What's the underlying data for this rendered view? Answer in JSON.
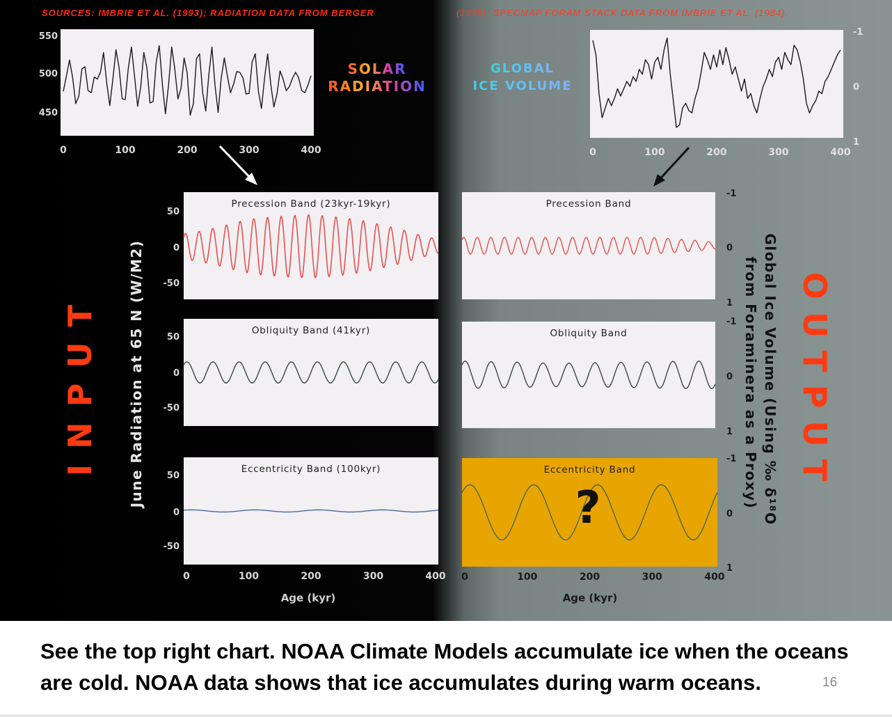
{
  "sources": {
    "part1": "SOURCES: IMBRIE ET AL. (1993); RADIATION DATA FROM BERGER",
    "part2": "(1978); SPECMAP FORAM STACK DATA FROM IMBRIE ET AL. (1984)."
  },
  "headings": {
    "solar_line1": "SOLAR",
    "solar_line2": "RADIATION",
    "ice_line1": "GLOBAL",
    "ice_line2": "ICE VOLUME"
  },
  "side_labels": {
    "input": "INPUT",
    "output": "OUTPUT",
    "left_axis": "June Radiation at 65 N (W/M2)",
    "right_axis_line1": "Global Ice Volume (Using ‰ δ¹⁸O",
    "right_axis_line2": "from Foraminera as a Proxy)"
  },
  "question_mark": "?",
  "caption": {
    "line1": "See the top right chart. NOAA Climate Models accumulate ice when the oceans",
    "line2": "are cold. NOAA data shows that ice accumulates during warm oceans."
  },
  "slide_number": "16",
  "colors": {
    "left_background": "#000000",
    "right_background": "#7d8885",
    "accent_red": "#ff3a12",
    "panel_fill": "#f2f0f2",
    "eccentricity_output_fill": "#e8a400",
    "precession_line": "#e85050",
    "obliquity_line": "#3a4a40",
    "eccentricity_input_line": "#4a6aa0",
    "eccentricity_output_line": "#4a6a50"
  },
  "chart_data": [
    {
      "id": "solar_radiation",
      "type": "line",
      "title": "SOLAR RADIATION",
      "x_ticks": [
        "0",
        "100",
        "200",
        "300",
        "400"
      ],
      "y_ticks": [
        "550",
        "500",
        "450"
      ],
      "xlim": [
        0,
        400
      ],
      "ylim": [
        420,
        560
      ],
      "x": [
        0,
        5,
        10,
        15,
        20,
        25,
        30,
        35,
        40,
        45,
        50,
        55,
        60,
        65,
        70,
        75,
        80,
        85,
        90,
        95,
        100,
        105,
        110,
        115,
        120,
        125,
        130,
        135,
        140,
        145,
        150,
        155,
        160,
        165,
        170,
        175,
        180,
        185,
        190,
        195,
        200,
        205,
        210,
        215,
        220,
        225,
        230,
        235,
        240,
        245,
        250,
        255,
        260,
        265,
        270,
        275,
        280,
        285,
        290,
        295,
        300,
        305,
        310,
        315,
        320,
        325,
        330,
        335,
        340,
        345,
        350,
        355,
        360,
        365,
        370,
        375,
        380,
        385,
        390,
        395,
        400
      ],
      "y": [
        477,
        500,
        523,
        498,
        459,
        470,
        510,
        513,
        478,
        475,
        498,
        495,
        505,
        534,
        490,
        456,
        495,
        538,
        512,
        466,
        465,
        511,
        542,
        500,
        455,
        484,
        534,
        511,
        460,
        462,
        520,
        544,
        487,
        444,
        487,
        542,
        510,
        466,
        481,
        526,
        504,
        442,
        459,
        525,
        532,
        475,
        448,
        501,
        542,
        485,
        446,
        496,
        526,
        499,
        475,
        488,
        506,
        505,
        497,
        473,
        474,
        520,
        532,
        477,
        452,
        497,
        532,
        488,
        454,
        473,
        507,
        495,
        478,
        484,
        496,
        505,
        497,
        478,
        475,
        486,
        500
      ]
    },
    {
      "id": "global_ice_volume",
      "type": "line",
      "title": "GLOBAL ICE VOLUME",
      "x_ticks": [
        "0",
        "100",
        "200",
        "300",
        "400"
      ],
      "y_ticks": [
        "-1",
        "0",
        "1"
      ],
      "xlim": [
        0,
        400
      ],
      "ylim": [
        1,
        -1
      ],
      "x": [
        0,
        5,
        10,
        15,
        20,
        25,
        30,
        35,
        40,
        45,
        50,
        55,
        60,
        65,
        70,
        75,
        80,
        85,
        90,
        95,
        100,
        105,
        110,
        115,
        120,
        125,
        130,
        135,
        140,
        145,
        150,
        155,
        160,
        165,
        170,
        175,
        180,
        185,
        190,
        195,
        200,
        205,
        210,
        215,
        220,
        225,
        230,
        235,
        240,
        245,
        250,
        255,
        260,
        265,
        270,
        275,
        280,
        285,
        290,
        295,
        300,
        305,
        310,
        315,
        320,
        325,
        330,
        335,
        340,
        345,
        350,
        355,
        360,
        365,
        370,
        375,
        380,
        385,
        390,
        395,
        400
      ],
      "y": [
        -0.9,
        -0.6,
        0.2,
        0.7,
        0.5,
        0.3,
        0.45,
        0.3,
        0.1,
        0.25,
        0.1,
        -0.05,
        0.05,
        -0.15,
        -0.05,
        -0.3,
        -0.2,
        -0.5,
        -0.4,
        -0.1,
        -0.45,
        -0.55,
        -0.3,
        -0.7,
        -0.95,
        -0.2,
        0.35,
        0.9,
        0.85,
        0.5,
        0.4,
        0.55,
        0.6,
        0.3,
        0.1,
        -0.25,
        -0.65,
        -0.5,
        -0.3,
        -0.6,
        -0.35,
        -0.7,
        -0.4,
        -0.75,
        -0.5,
        -0.2,
        -0.35,
        -0.1,
        0.15,
        -0.1,
        0.3,
        0.2,
        0.45,
        0.6,
        0.3,
        0.05,
        -0.1,
        -0.3,
        -0.15,
        -0.45,
        -0.55,
        -0.3,
        -0.65,
        -0.5,
        -0.4,
        -0.8,
        -0.7,
        -0.45,
        -0.1,
        0.4,
        0.6,
        0.45,
        0.35,
        0.15,
        0.2,
        -0.05,
        -0.15,
        -0.3,
        -0.45,
        -0.6,
        -0.7
      ]
    },
    {
      "id": "input_precession",
      "type": "line",
      "title": "Precession Band (23kyr-19kyr)",
      "period_kyr": 21.5,
      "amplitude_wm2": [
        18,
        22,
        28,
        35,
        40,
        42,
        44,
        45,
        43,
        40,
        36,
        30,
        24,
        16,
        10
      ],
      "x_ticks": [],
      "y_ticks": [
        "50",
        "0",
        "-50"
      ],
      "xlim": [
        0,
        400
      ],
      "ylim": [
        -70,
        70
      ]
    },
    {
      "id": "input_obliquity",
      "type": "line",
      "title": "Obliquity Band (41kyr)",
      "period_kyr": 41,
      "amplitude_wm2": [
        15
      ],
      "x_ticks": [],
      "y_ticks": [
        "50",
        "0",
        "-50"
      ],
      "xlim": [
        0,
        400
      ],
      "ylim": [
        -70,
        70
      ]
    },
    {
      "id": "input_eccentricity",
      "type": "line",
      "title": "Eccentricity Band (100kyr)",
      "period_kyr": 100,
      "amplitude_wm2": [
        1.5
      ],
      "x_ticks": [
        "0",
        "100",
        "200",
        "300",
        "400"
      ],
      "y_ticks": [
        "50",
        "0",
        "-50"
      ],
      "xlim": [
        0,
        400
      ],
      "ylim": [
        -70,
        70
      ],
      "xlabel": "Age (kyr)"
    },
    {
      "id": "output_precession",
      "type": "line",
      "title": "Precession Band",
      "period_kyr": 21.5,
      "amplitude_norm": [
        0.17,
        0.17,
        0.17,
        0.17,
        0.17,
        0.17,
        0.17,
        0.17,
        0.17,
        0.17,
        0.14,
        0.11,
        0.07
      ],
      "x_ticks": [],
      "y_ticks": [
        "-1",
        "0",
        "1"
      ],
      "xlim": [
        0,
        400
      ],
      "ylim": [
        1,
        -1
      ]
    },
    {
      "id": "output_obliquity",
      "type": "line",
      "title": "Obliquity Band",
      "period_kyr": 41,
      "amplitude_norm": [
        0.28,
        0.27,
        0.26,
        0.24,
        0.24,
        0.25,
        0.26,
        0.27,
        0.28,
        0.28
      ],
      "x_ticks": [],
      "y_ticks": [
        "-1",
        "0",
        "1"
      ],
      "xlim": [
        0,
        400
      ],
      "ylim": [
        1,
        -1
      ]
    },
    {
      "id": "output_eccentricity",
      "type": "line",
      "title": "Eccentricity Band",
      "period_kyr": 100,
      "amplitude_norm": [
        0.55
      ],
      "x_ticks": [
        "0",
        "100",
        "200",
        "300",
        "400"
      ],
      "y_ticks": [
        "-1",
        "0",
        "1"
      ],
      "xlim": [
        0,
        400
      ],
      "ylim": [
        1,
        -1
      ],
      "xlabel": "Age (kyr)"
    }
  ]
}
